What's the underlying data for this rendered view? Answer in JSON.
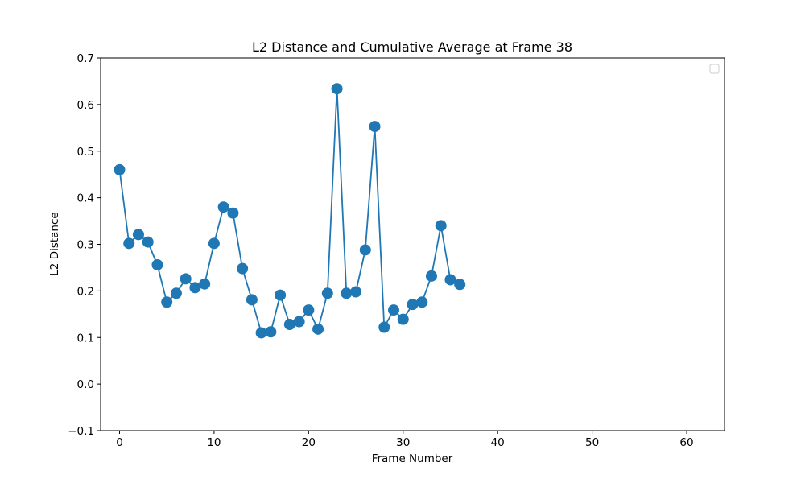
{
  "chart_data": {
    "type": "line",
    "title": "L2 Distance and Cumulative Average at Frame 38",
    "xlabel": "Frame Number",
    "ylabel": "L2 Distance",
    "xlim": [
      -2,
      64
    ],
    "ylim": [
      -0.1,
      0.7
    ],
    "xticks": [
      0,
      10,
      20,
      30,
      40,
      50,
      60
    ],
    "xtick_labels": [
      "0",
      "10",
      "20",
      "30",
      "40",
      "50",
      "60"
    ],
    "yticks": [
      -0.1,
      0.0,
      0.1,
      0.2,
      0.3,
      0.4,
      0.5,
      0.6,
      0.7
    ],
    "ytick_labels": [
      "−0.1",
      "0.0",
      "0.1",
      "0.2",
      "0.3",
      "0.4",
      "0.5",
      "0.6",
      "0.7"
    ],
    "grid": false,
    "legend": {
      "position": "top-right",
      "entries": []
    },
    "series": [
      {
        "color": "#1f77b4",
        "marker": "circle",
        "x": [
          0,
          1,
          2,
          3,
          4,
          5,
          6,
          7,
          8,
          9,
          10,
          11,
          12,
          13,
          14,
          15,
          16,
          17,
          18,
          19,
          20,
          21,
          22,
          23,
          24,
          25,
          26,
          27,
          28,
          29,
          30,
          31,
          32,
          33,
          34,
          35,
          36
        ],
        "values": [
          0.46,
          0.302,
          0.321,
          0.305,
          0.256,
          0.176,
          0.195,
          0.226,
          0.207,
          0.215,
          0.302,
          0.38,
          0.367,
          0.248,
          0.181,
          0.11,
          0.112,
          0.191,
          0.128,
          0.134,
          0.159,
          0.118,
          0.195,
          0.634,
          0.195,
          0.198,
          0.288,
          0.553,
          0.122,
          0.159,
          0.139,
          0.171,
          0.176,
          0.232,
          0.34,
          0.224,
          0.214
        ]
      }
    ]
  }
}
